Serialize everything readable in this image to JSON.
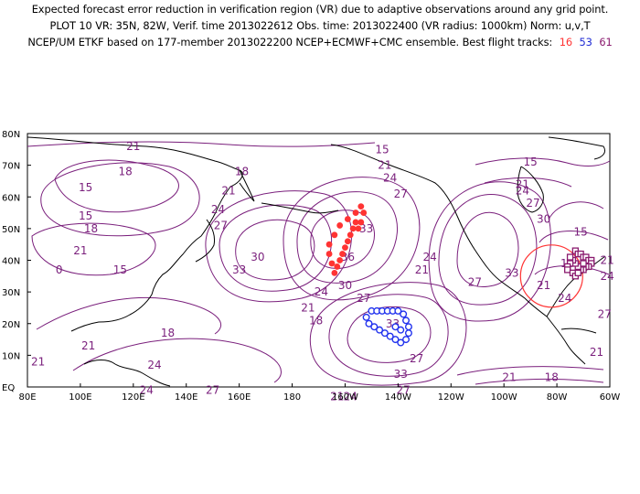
{
  "header": {
    "line1": "Expected forecast error reduction in verification region (VR) due to adaptive observations around any grid point.",
    "line2": "PLOT 10 VR: 35N, 82W, Verif. time 2013022612 Obs. time: 2013022400 (VR radius: 1000km) Norm: u,v,T",
    "line3_prefix": "NCEP/UM ETKF based on 177-member 2013022200 NCEP+ECMWF+CMC ensemble. Best flight tracks:",
    "track_red": "16",
    "track_blue": "53",
    "track_purple": "61"
  },
  "colors": {
    "contour": "#7a1f7c",
    "coast": "#000000",
    "track_red": "#ff3333",
    "track_blue": "#2233ee",
    "track_purple": "#8a1a6e",
    "verification_circle": "#ff3333"
  },
  "map": {
    "projection": "cylindrical equidistant",
    "lon_range": [
      80,
      300
    ],
    "lat_range": [
      0,
      80
    ],
    "lat_labels": [
      "80N",
      "70N",
      "60N",
      "50N",
      "40N",
      "30N",
      "20N",
      "10N",
      "EQ"
    ],
    "lon_labels": [
      "80E",
      "100E",
      "120E",
      "140E",
      "160E",
      "180",
      "160W",
      "140W",
      "120W",
      "100W",
      "80W",
      "60W"
    ],
    "verification_region": {
      "lat": 35,
      "lon": -82,
      "radius_km": 1000
    },
    "contour_labels": [
      {
        "text": "21",
        "lon": 120,
        "lat": 76
      },
      {
        "text": "18",
        "lon": 117,
        "lat": 68
      },
      {
        "text": "15",
        "lon": 102,
        "lat": 63
      },
      {
        "text": "15",
        "lon": 102,
        "lat": 54
      },
      {
        "text": "18",
        "lon": 104,
        "lat": 50
      },
      {
        "text": "21",
        "lon": 100,
        "lat": 43
      },
      {
        "text": "0",
        "lon": 92,
        "lat": 37
      },
      {
        "text": "15",
        "lon": 115,
        "lat": 37
      },
      {
        "text": "18",
        "lon": 161,
        "lat": 68
      },
      {
        "text": "21",
        "lon": 156,
        "lat": 62
      },
      {
        "text": "24",
        "lon": 152,
        "lat": 56
      },
      {
        "text": "27",
        "lon": 153,
        "lat": 51
      },
      {
        "text": "30",
        "lon": 167,
        "lat": 41
      },
      {
        "text": "33",
        "lon": 160,
        "lat": 37
      },
      {
        "text": "15",
        "lon": 214,
        "lat": 75
      },
      {
        "text": "21",
        "lon": 215,
        "lat": 70
      },
      {
        "text": "24",
        "lon": 217,
        "lat": 66
      },
      {
        "text": "27",
        "lon": 221,
        "lat": 61
      },
      {
        "text": "33",
        "lon": 208,
        "lat": 50
      },
      {
        "text": "36",
        "lon": 201,
        "lat": 41
      },
      {
        "text": "30",
        "lon": 200,
        "lat": 32
      },
      {
        "text": "27",
        "lon": 207,
        "lat": 28
      },
      {
        "text": "24",
        "lon": 191,
        "lat": 30
      },
      {
        "text": "21",
        "lon": 186,
        "lat": 25
      },
      {
        "text": "18",
        "lon": 189,
        "lat": 21
      },
      {
        "text": "24",
        "lon": 232,
        "lat": 41
      },
      {
        "text": "21",
        "lon": 229,
        "lat": 37
      },
      {
        "text": "18",
        "lon": 133,
        "lat": 17
      },
      {
        "text": "21",
        "lon": 103,
        "lat": 13
      },
      {
        "text": "21",
        "lon": 84,
        "lat": 8
      },
      {
        "text": "24",
        "lon": 128,
        "lat": 7
      },
      {
        "text": "24",
        "lon": 125,
        "lat": -1
      },
      {
        "text": "27",
        "lon": 150,
        "lat": -1
      },
      {
        "text": "33",
        "lon": 218,
        "lat": 20
      },
      {
        "text": "33",
        "lon": 221,
        "lat": 4
      },
      {
        "text": "27",
        "lon": 222,
        "lat": -1
      },
      {
        "text": "21",
        "lon": 197,
        "lat": -3
      },
      {
        "text": "24",
        "lon": 202,
        "lat": -3
      },
      {
        "text": "27",
        "lon": 227,
        "lat": 9
      },
      {
        "text": "15",
        "lon": 270,
        "lat": 71
      },
      {
        "text": "21",
        "lon": 267,
        "lat": 64
      },
      {
        "text": "24",
        "lon": 267,
        "lat": 62
      },
      {
        "text": "27",
        "lon": 271,
        "lat": 58
      },
      {
        "text": "30",
        "lon": 275,
        "lat": 53
      },
      {
        "text": "33",
        "lon": 263,
        "lat": 36
      },
      {
        "text": "27",
        "lon": 249,
        "lat": 33
      },
      {
        "text": "21",
        "lon": 275,
        "lat": 32
      },
      {
        "text": "15",
        "lon": 289,
        "lat": 49
      },
      {
        "text": "18",
        "lon": 284,
        "lat": 39
      },
      {
        "text": "21",
        "lon": 299,
        "lat": 40
      },
      {
        "text": "24",
        "lon": 299,
        "lat": 35
      },
      {
        "text": "24",
        "lon": 283,
        "lat": 28
      },
      {
        "text": "27",
        "lon": 298,
        "lat": 23
      },
      {
        "text": "21",
        "lon": 262,
        "lat": 3
      },
      {
        "text": "18",
        "lon": 278,
        "lat": 3
      },
      {
        "text": "21",
        "lon": 295,
        "lat": 11
      }
    ]
  },
  "tracks": {
    "red": [
      [
        -156,
        52
      ],
      [
        -157,
        50
      ],
      [
        -158,
        48
      ],
      [
        -159,
        46
      ],
      [
        -160,
        44
      ],
      [
        -161,
        42
      ],
      [
        -162,
        40
      ],
      [
        -163,
        38
      ],
      [
        -164,
        36
      ],
      [
        -165,
        39
      ],
      [
        -166,
        42
      ],
      [
        -166,
        45
      ],
      [
        -164,
        48
      ],
      [
        -162,
        51
      ],
      [
        -159,
        53
      ],
      [
        -156,
        55
      ],
      [
        -154,
        57
      ],
      [
        -153,
        55
      ],
      [
        -154,
        52
      ],
      [
        -155,
        50
      ]
    ],
    "blue": [
      [
        -150,
        24
      ],
      [
        -148,
        24
      ],
      [
        -146,
        24
      ],
      [
        -144,
        24
      ],
      [
        -142,
        24
      ],
      [
        -140,
        24
      ],
      [
        -138,
        23
      ],
      [
        -137,
        21
      ],
      [
        -136,
        19
      ],
      [
        -136,
        17
      ],
      [
        -137,
        15
      ],
      [
        -139,
        14
      ],
      [
        -141,
        15
      ],
      [
        -143,
        16
      ],
      [
        -145,
        17
      ],
      [
        -147,
        18
      ],
      [
        -149,
        19
      ],
      [
        -151,
        20
      ],
      [
        -152,
        22
      ],
      [
        -141,
        19
      ],
      [
        -139,
        18
      ]
    ],
    "purple": [
      [
        -73,
        43
      ],
      [
        -72,
        42
      ],
      [
        -71,
        42
      ],
      [
        -70,
        41
      ],
      [
        -69,
        41
      ],
      [
        -68,
        40
      ],
      [
        -67,
        40
      ],
      [
        -67,
        39
      ],
      [
        -68,
        38
      ],
      [
        -69,
        38
      ],
      [
        -70,
        37
      ],
      [
        -71,
        37
      ],
      [
        -72,
        38
      ],
      [
        -73,
        39
      ],
      [
        -74,
        40
      ],
      [
        -75,
        41
      ],
      [
        -75,
        39
      ],
      [
        -76,
        38
      ],
      [
        -76,
        37
      ],
      [
        -74,
        36
      ],
      [
        -73,
        35
      ],
      [
        -72,
        36
      ],
      [
        -70,
        39
      ]
    ]
  }
}
